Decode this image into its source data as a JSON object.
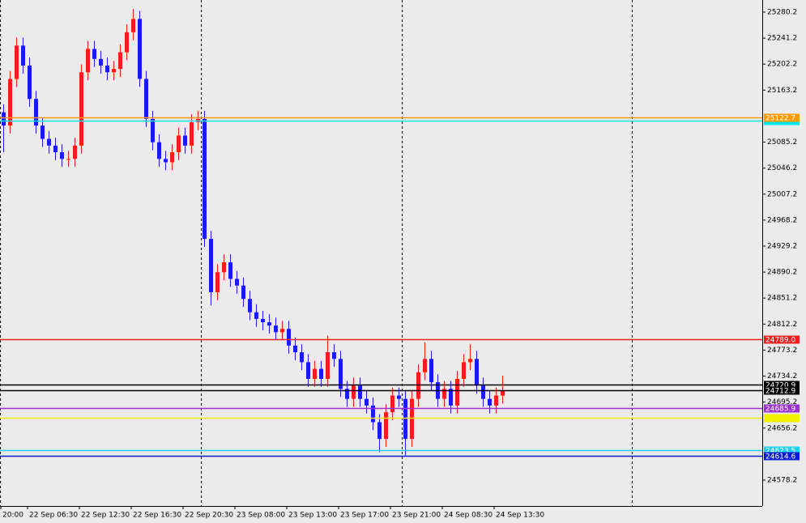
{
  "chart_data": {
    "type": "candlestick",
    "up_color": "#ff1a1a",
    "down_color": "#1a1aff",
    "open": [
      25130,
      25110,
      25180,
      25230,
      25200,
      25150,
      25110,
      25090,
      25080,
      25070,
      25060,
      25060,
      25080,
      25190,
      25225,
      25210,
      25200,
      25190,
      25195,
      25220,
      25250,
      25270,
      25180,
      25120,
      25085,
      25060,
      25055,
      25070,
      25095,
      25080,
      25115,
      25120,
      24940,
      24860,
      24890,
      24905,
      24880,
      24870,
      24850,
      24830,
      24820,
      24815,
      24810,
      24800,
      24805,
      24780,
      24770,
      24755,
      24730,
      24745,
      24730,
      24770,
      24760,
      24715,
      24700,
      24720,
      24700,
      24690,
      24665,
      24640,
      24680,
      24705,
      24700,
      24640,
      24700,
      24740,
      24760,
      24725,
      24700,
      24715,
      24690,
      24730,
      24755,
      24760,
      24720,
      24700,
      24690,
      24705
    ],
    "high": [
      25142,
      25192,
      25242,
      25242,
      25212,
      25162,
      25122,
      25102,
      25092,
      25082,
      25072,
      25092,
      25202,
      25237,
      25237,
      25222,
      25212,
      25207,
      25232,
      25262,
      25285,
      25282,
      25192,
      25132,
      25097,
      25072,
      25082,
      25107,
      25107,
      25127,
      25132,
      25132,
      24952,
      24902,
      24917,
      24917,
      24892,
      24882,
      24862,
      24842,
      24832,
      24827,
      24822,
      24817,
      24817,
      24792,
      24782,
      24767,
      24757,
      24757,
      24795,
      24782,
      24772,
      24727,
      24732,
      24732,
      24712,
      24702,
      24677,
      24692,
      24717,
      24717,
      24712,
      24712,
      24752,
      24785,
      24772,
      24737,
      24727,
      24727,
      24742,
      24767,
      24782,
      24772,
      24732,
      24712,
      24717,
      24735
    ],
    "low": [
      25070,
      25098,
      25168,
      25188,
      25138,
      25098,
      25078,
      25068,
      25058,
      25048,
      25048,
      25048,
      25068,
      25178,
      25198,
      25188,
      25178,
      25178,
      25183,
      25208,
      25238,
      25168,
      25108,
      25073,
      25048,
      25043,
      25043,
      25058,
      25068,
      25068,
      25103,
      24928,
      24840,
      24848,
      24878,
      24868,
      24858,
      24838,
      24818,
      24808,
      24803,
      24798,
      24788,
      24788,
      24768,
      24758,
      24743,
      24718,
      24718,
      24718,
      24718,
      24748,
      24703,
      24688,
      24688,
      24688,
      24678,
      24653,
      24620,
      24628,
      24668,
      24688,
      24615,
      24628,
      24688,
      24728,
      24713,
      24688,
      24688,
      24678,
      24678,
      24718,
      24743,
      24708,
      24688,
      24678,
      24678,
      24693
    ],
    "close": [
      25110,
      25180,
      25230,
      25200,
      25150,
      25110,
      25090,
      25080,
      25070,
      25060,
      25060,
      25080,
      25190,
      25225,
      25210,
      25200,
      25190,
      25195,
      25220,
      25250,
      25270,
      25180,
      25120,
      25085,
      25060,
      25055,
      25070,
      25095,
      25080,
      25115,
      25120,
      24940,
      24860,
      24890,
      24905,
      24880,
      24870,
      24850,
      24830,
      24820,
      24815,
      24810,
      24800,
      24805,
      24780,
      24770,
      24755,
      24730,
      24745,
      24730,
      24770,
      24760,
      24715,
      24700,
      24720,
      24700,
      24690,
      24665,
      24640,
      24680,
      24705,
      24700,
      24640,
      24700,
      24740,
      24760,
      24725,
      24700,
      24715,
      24690,
      24730,
      24755,
      24760,
      24720,
      24700,
      24690,
      24705,
      24712
    ],
    "ylim": [
      24539.3,
      25298.4
    ],
    "yticks": [
      25280.2,
      25241.2,
      25202.2,
      25163.2,
      25085.2,
      25046.2,
      25007.2,
      24968.2,
      24929.2,
      24890.2,
      24851.2,
      24812.2,
      24773.2,
      24734.2,
      24695.2,
      24656.2,
      24578.2
    ],
    "x_labels": [
      "20:00",
      "22 Sep 06:30",
      "22 Sep 12:30",
      "22 Sep 16:30",
      "22 Sep 20:30",
      "23 Sep 08:00",
      "23 Sep 13:00",
      "23 Sep 17:00",
      "23 Sep 21:00",
      "24 Sep 08:30",
      "24 Sep 13:30"
    ],
    "levels": [
      {
        "value": 25117.5,
        "color": "#00e5e5",
        "label": null
      },
      {
        "value": 25122.7,
        "color": "#ff9900",
        "label": "25122.7"
      },
      {
        "value": 24789.0,
        "color": "#e82020",
        "label": "24789.0"
      },
      {
        "value": 24720.9,
        "color": "#000000",
        "label": "24720.9"
      },
      {
        "value": 24712.9,
        "color": "#000000",
        "label": "24712.9"
      },
      {
        "value": 24685.9,
        "color": "#9b30d0",
        "label": "24685.9"
      },
      {
        "value": 24671.7,
        "color": "#f0f000",
        "label": null
      },
      {
        "value": 24623.5,
        "color": "#20d0f0",
        "label": "24623.5"
      },
      {
        "value": 24614.6,
        "color": "#0a1ed0",
        "label": "24614.6"
      }
    ]
  }
}
